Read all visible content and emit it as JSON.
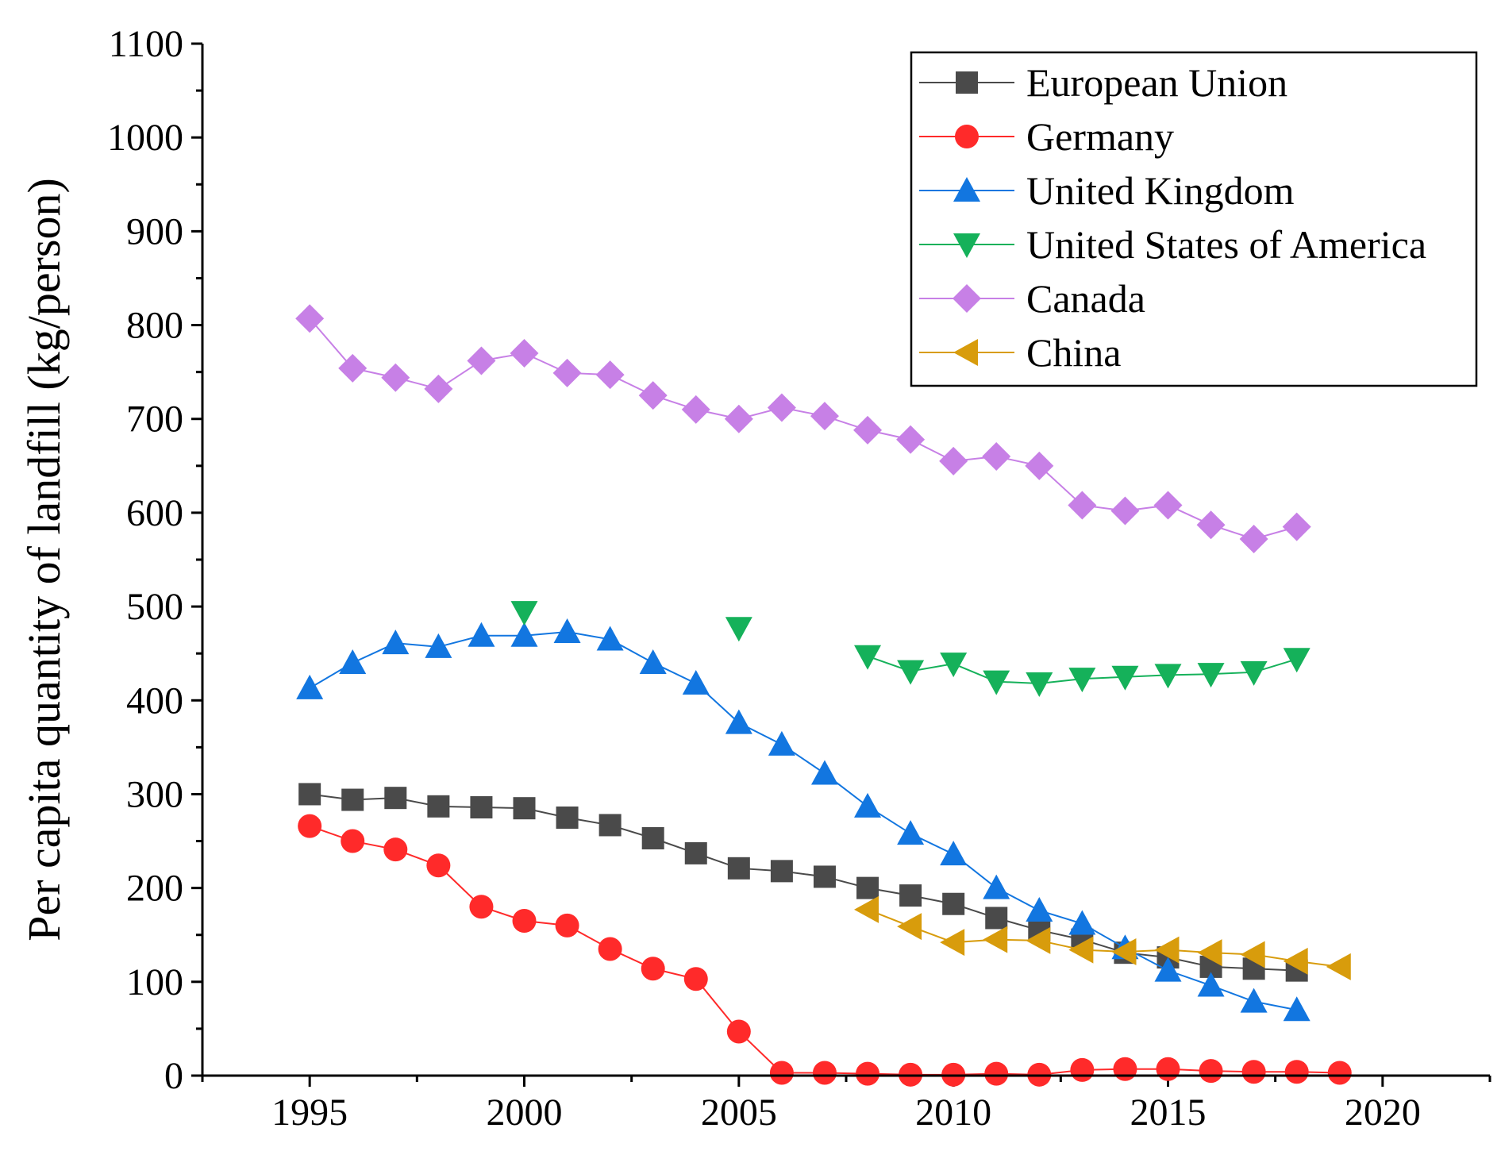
{
  "chart_data": {
    "type": "line",
    "title": "",
    "xlabel": "",
    "ylabel": "Per capita quantity of landfill (kg/person)",
    "xlim": [
      1992.5,
      2022.5
    ],
    "ylim": [
      0,
      1100
    ],
    "xticks": [
      1995,
      2000,
      2005,
      2010,
      2015,
      2020
    ],
    "yticks": [
      0,
      100,
      200,
      300,
      400,
      500,
      600,
      700,
      800,
      900,
      1000,
      1100
    ],
    "legend_position": "top-right",
    "series": [
      {
        "name": "European Union",
        "color": "#4a4a4a",
        "marker": "square",
        "points": [
          [
            1995,
            300
          ],
          [
            1996,
            294
          ],
          [
            1997,
            296
          ],
          [
            1998,
            287
          ],
          [
            1999,
            286
          ],
          [
            2000,
            285
          ],
          [
            2001,
            275
          ],
          [
            2002,
            267
          ],
          [
            2003,
            253
          ],
          [
            2004,
            237
          ],
          [
            2005,
            221
          ],
          [
            2006,
            218
          ],
          [
            2007,
            212
          ],
          [
            2008,
            200
          ],
          [
            2009,
            192
          ],
          [
            2010,
            183
          ],
          [
            2011,
            168
          ],
          [
            2012,
            155
          ],
          [
            2013,
            145
          ],
          [
            2014,
            131
          ],
          [
            2015,
            126
          ],
          [
            2016,
            116
          ],
          [
            2017,
            114
          ],
          [
            2018,
            112
          ]
        ]
      },
      {
        "name": "Germany",
        "color": "#ff2a2a",
        "marker": "circle",
        "points": [
          [
            1995,
            266
          ],
          [
            1996,
            250
          ],
          [
            1997,
            241
          ],
          [
            1998,
            224
          ],
          [
            1999,
            180
          ],
          [
            2000,
            165
          ],
          [
            2001,
            160
          ],
          [
            2002,
            135
          ],
          [
            2003,
            114
          ],
          [
            2004,
            103
          ],
          [
            2005,
            47
          ],
          [
            2006,
            3
          ],
          [
            2007,
            3
          ],
          [
            2008,
            2
          ],
          [
            2009,
            1
          ],
          [
            2010,
            1
          ],
          [
            2011,
            2
          ],
          [
            2012,
            1
          ],
          [
            2013,
            6
          ],
          [
            2014,
            7
          ],
          [
            2015,
            7
          ],
          [
            2016,
            5
          ],
          [
            2017,
            4
          ],
          [
            2018,
            4
          ],
          [
            2019,
            3
          ]
        ]
      },
      {
        "name": "United Kingdom",
        "color": "#1276e0",
        "marker": "triangle-up",
        "points": [
          [
            1995,
            413
          ],
          [
            1996,
            440
          ],
          [
            1997,
            461
          ],
          [
            1998,
            457
          ],
          [
            1999,
            469
          ],
          [
            2000,
            469
          ],
          [
            2001,
            473
          ],
          [
            2002,
            465
          ],
          [
            2003,
            440
          ],
          [
            2004,
            418
          ],
          [
            2005,
            376
          ],
          [
            2006,
            353
          ],
          [
            2007,
            322
          ],
          [
            2008,
            287
          ],
          [
            2009,
            258
          ],
          [
            2010,
            236
          ],
          [
            2011,
            200
          ],
          [
            2012,
            176
          ],
          [
            2013,
            162
          ],
          [
            2014,
            136
          ],
          [
            2015,
            112
          ],
          [
            2016,
            96
          ],
          [
            2017,
            79
          ],
          [
            2018,
            70
          ]
        ]
      },
      {
        "name": "United States of America",
        "color": "#15b15a",
        "marker": "triangle-down",
        "segments": [
          [
            [
              2000,
              494
            ]
          ],
          [
            [
              2005,
              477
            ]
          ],
          [
            [
              2008,
              447
            ],
            [
              2009,
              431
            ],
            [
              2010,
              439
            ],
            [
              2011,
              420
            ],
            [
              2012,
              418
            ],
            [
              2013,
              423
            ],
            [
              2014,
              425
            ],
            [
              2015,
              427
            ],
            [
              2016,
              428
            ],
            [
              2017,
              430
            ],
            [
              2018,
              444
            ]
          ]
        ]
      },
      {
        "name": "Canada",
        "color": "#c780e6",
        "marker": "diamond",
        "points": [
          [
            1995,
            807
          ],
          [
            1996,
            754
          ],
          [
            1997,
            744
          ],
          [
            1998,
            732
          ],
          [
            1999,
            762
          ],
          [
            2000,
            770
          ],
          [
            2001,
            749
          ],
          [
            2002,
            747
          ],
          [
            2003,
            725
          ],
          [
            2004,
            710
          ],
          [
            2005,
            700
          ],
          [
            2006,
            712
          ],
          [
            2007,
            703
          ],
          [
            2008,
            688
          ],
          [
            2009,
            678
          ],
          [
            2010,
            655
          ],
          [
            2011,
            660
          ],
          [
            2012,
            650
          ],
          [
            2013,
            608
          ],
          [
            2014,
            602
          ],
          [
            2015,
            608
          ],
          [
            2016,
            587
          ],
          [
            2017,
            572
          ],
          [
            2018,
            585
          ]
        ]
      },
      {
        "name": "China",
        "color": "#d89c0c",
        "marker": "triangle-left",
        "points": [
          [
            2008,
            177
          ],
          [
            2009,
            159
          ],
          [
            2010,
            142
          ],
          [
            2011,
            145
          ],
          [
            2012,
            144
          ],
          [
            2013,
            134
          ],
          [
            2014,
            132
          ],
          [
            2015,
            134
          ],
          [
            2016,
            131
          ],
          [
            2017,
            129
          ],
          [
            2018,
            122
          ],
          [
            2019,
            116
          ]
        ]
      }
    ]
  }
}
